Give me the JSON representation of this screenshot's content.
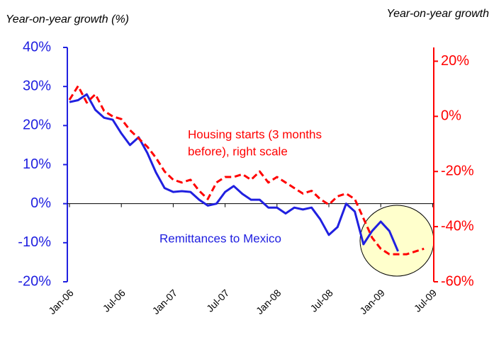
{
  "chart_data": {
    "type": "line",
    "ylabel": "Year-on-year growth (%)",
    "y2label": "Year-on-year growth",
    "annotations": [
      "Housing starts (3 months",
      "before), right scale",
      "Remittances to Mexico"
    ],
    "categories": [
      "Jan-06",
      null,
      null,
      null,
      null,
      null,
      "Jul-06",
      null,
      null,
      null,
      null,
      null,
      "Jan-07",
      null,
      null,
      null,
      null,
      null,
      "Jul-07",
      null,
      null,
      null,
      null,
      null,
      "Jan-08",
      null,
      null,
      null,
      null,
      null,
      "Jul-08",
      null,
      null,
      null,
      null,
      null,
      "Jan-09",
      null,
      null,
      null,
      null,
      null,
      "Jul-09"
    ],
    "ylim": [
      -20,
      40
    ],
    "yticks": [
      {
        "value": -20,
        "label": "-20%"
      },
      {
        "value": -10,
        "label": "-10%"
      },
      {
        "value": 0,
        "label": "0%"
      },
      {
        "value": 10,
        "label": "10%"
      },
      {
        "value": 20,
        "label": "20%"
      },
      {
        "value": 30,
        "label": "30%"
      },
      {
        "value": 40,
        "label": "40%"
      }
    ],
    "y2lim": [
      -60,
      25
    ],
    "y2ticks": [
      {
        "value": -60,
        "label": "-60%"
      },
      {
        "value": -40,
        "label": "-40%"
      },
      {
        "value": -20,
        "label": "-20%"
      },
      {
        "value": 0,
        "label": "0%"
      },
      {
        "value": 20,
        "label": "20%"
      }
    ],
    "series": [
      {
        "color": "#2020e0",
        "values": [
          26,
          26.5,
          28,
          24,
          22,
          21.5,
          18,
          15,
          17,
          13,
          8,
          4,
          3,
          3.2,
          3,
          1,
          -0.5,
          0,
          3,
          4.5,
          2.5,
          1,
          1,
          -1,
          -1,
          -2.5,
          -1,
          -1.5,
          -1,
          -4,
          -8,
          -6,
          0,
          -2,
          -10.4,
          -7,
          -4.6,
          -7,
          -12.2,
          null,
          null,
          null,
          null
        ]
      },
      {
        "color": "#ff0000",
        "axis": "y2",
        "dashed": true,
        "values": [
          6,
          11,
          5,
          8,
          2,
          0,
          -1,
          -5,
          -8,
          -11,
          -15,
          -20,
          -23,
          -24,
          -23,
          -27,
          -30,
          -24,
          -22,
          -22,
          -21,
          -23,
          -20,
          -24,
          -22,
          -24,
          -26,
          -28,
          -27,
          -30,
          -32,
          -29,
          -28,
          -30,
          -37,
          -44,
          -48,
          -50,
          -50,
          -50,
          -49,
          -48,
          null
        ]
      }
    ]
  }
}
